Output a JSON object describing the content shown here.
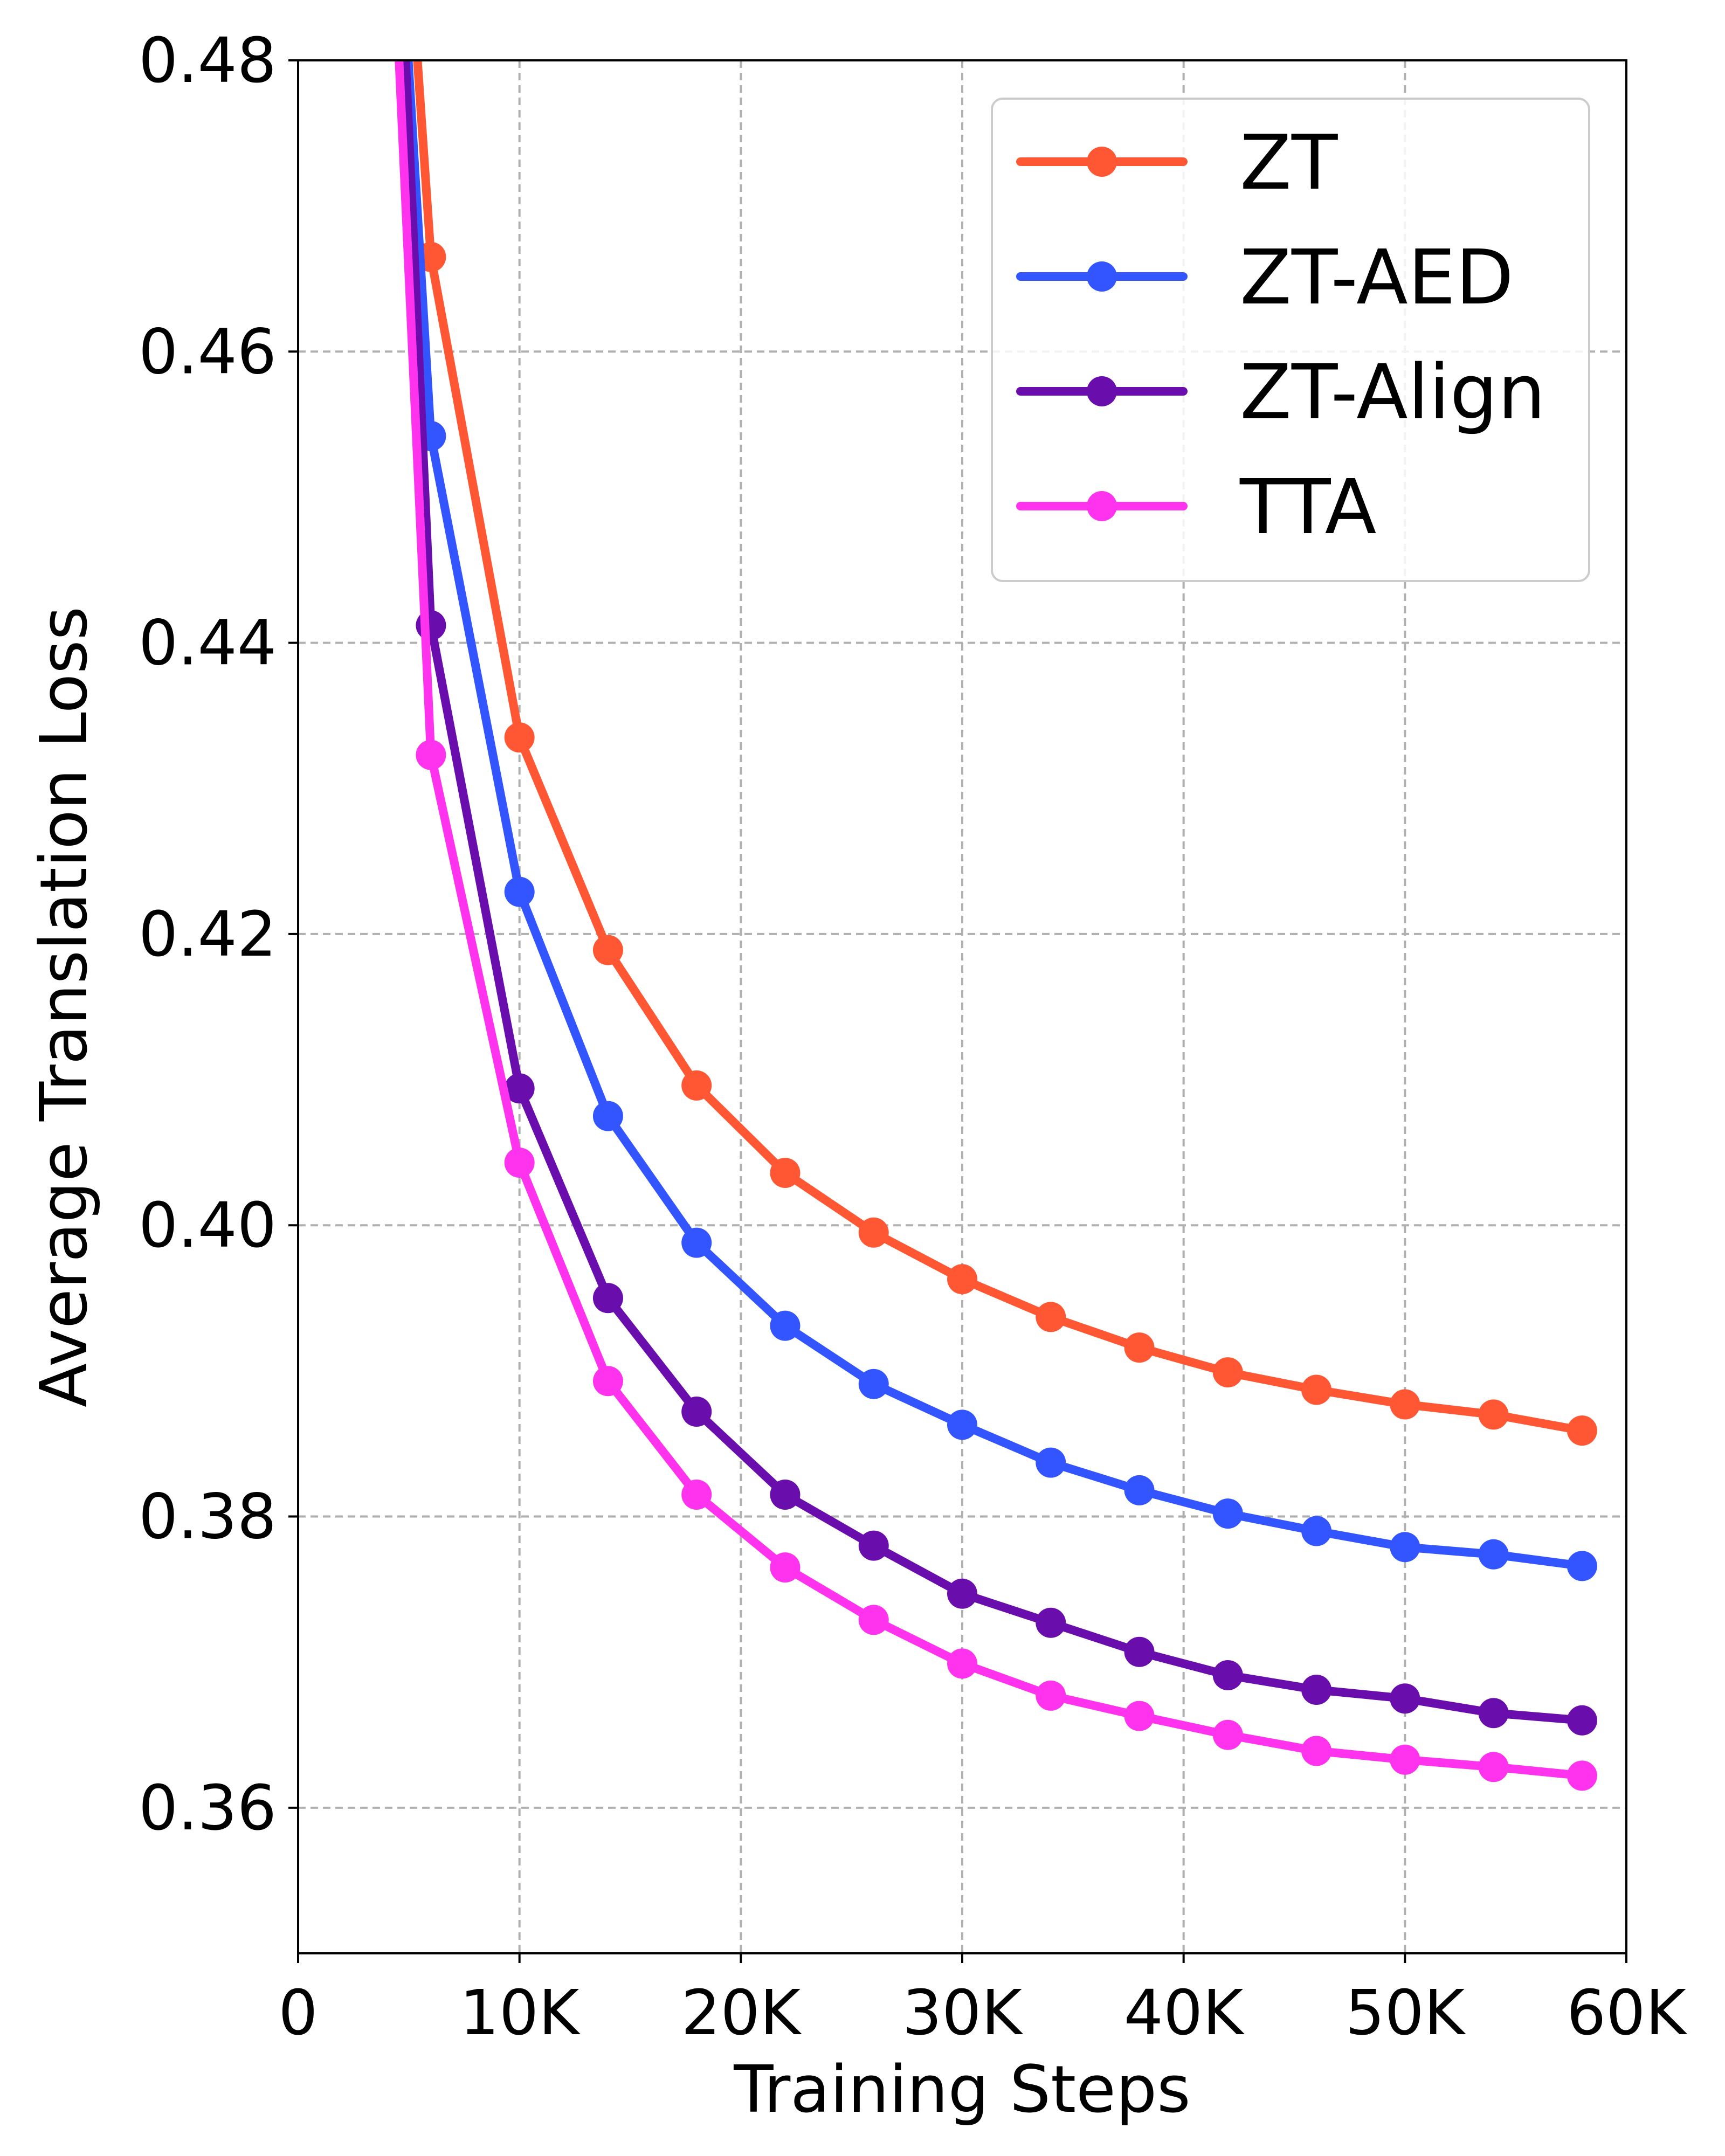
{
  "chart_data": {
    "type": "line",
    "title": "",
    "xlabel": "Training Steps",
    "ylabel": "Average Translation Loss",
    "xlim": [
      0,
      60000
    ],
    "ylim": [
      0.35,
      0.48
    ],
    "x_ticks": [
      {
        "value": 0,
        "label": "0"
      },
      {
        "value": 10000,
        "label": "10K"
      },
      {
        "value": 20000,
        "label": "20K"
      },
      {
        "value": 30000,
        "label": "30K"
      },
      {
        "value": 40000,
        "label": "40K"
      },
      {
        "value": 50000,
        "label": "50K"
      },
      {
        "value": 60000,
        "label": "60K"
      }
    ],
    "y_ticks": [
      {
        "value": 0.36,
        "label": "0.36"
      },
      {
        "value": 0.38,
        "label": "0.38"
      },
      {
        "value": 0.4,
        "label": "0.40"
      },
      {
        "value": 0.42,
        "label": "0.42"
      },
      {
        "value": 0.44,
        "label": "0.44"
      },
      {
        "value": 0.46,
        "label": "0.46"
      },
      {
        "value": 0.48,
        "label": "0.48"
      }
    ],
    "grid": true,
    "legend_position": "top-right",
    "series": [
      {
        "name": "ZT",
        "color": "#FF5733",
        "line_from": {
          "x": 5300,
          "y": 0.482
        },
        "x": [
          6000,
          10000,
          14000,
          18000,
          22000,
          26000,
          30000,
          34000,
          38000,
          42000,
          46000,
          50000,
          54000,
          58000
        ],
        "y": [
          0.4665,
          0.4335,
          0.4189,
          0.4096,
          0.4036,
          0.3995,
          0.3963,
          0.3937,
          0.3916,
          0.3899,
          0.3887,
          0.3877,
          0.387,
          0.3859
        ]
      },
      {
        "name": "ZT-AED",
        "color": "#3355FF",
        "line_from": {
          "x": 4900,
          "y": 0.482
        },
        "x": [
          6000,
          10000,
          14000,
          18000,
          22000,
          26000,
          30000,
          34000,
          38000,
          42000,
          46000,
          50000,
          54000,
          58000
        ],
        "y": [
          0.4542,
          0.4229,
          0.4075,
          0.3988,
          0.3931,
          0.3891,
          0.3863,
          0.3837,
          0.3818,
          0.3802,
          0.379,
          0.3779,
          0.3774,
          0.3766
        ]
      },
      {
        "name": "ZT-Align",
        "color": "#6A0DAD",
        "line_from": {
          "x": 4800,
          "y": 0.482
        },
        "x": [
          6000,
          10000,
          14000,
          18000,
          22000,
          26000,
          30000,
          34000,
          38000,
          42000,
          46000,
          50000,
          54000,
          58000
        ],
        "y": [
          0.4412,
          0.4094,
          0.395,
          0.3872,
          0.3815,
          0.378,
          0.3747,
          0.3727,
          0.3707,
          0.3691,
          0.3681,
          0.3675,
          0.3665,
          0.366
        ]
      },
      {
        "name": "TTA",
        "color": "#FF33EE",
        "line_from": {
          "x": 4500,
          "y": 0.482
        },
        "x": [
          6000,
          10000,
          14000,
          18000,
          22000,
          26000,
          30000,
          34000,
          38000,
          42000,
          46000,
          50000,
          54000,
          58000
        ],
        "y": [
          0.4323,
          0.4043,
          0.3893,
          0.3815,
          0.3765,
          0.3729,
          0.3699,
          0.3677,
          0.3663,
          0.365,
          0.3639,
          0.3633,
          0.3628,
          0.3622
        ]
      }
    ]
  }
}
